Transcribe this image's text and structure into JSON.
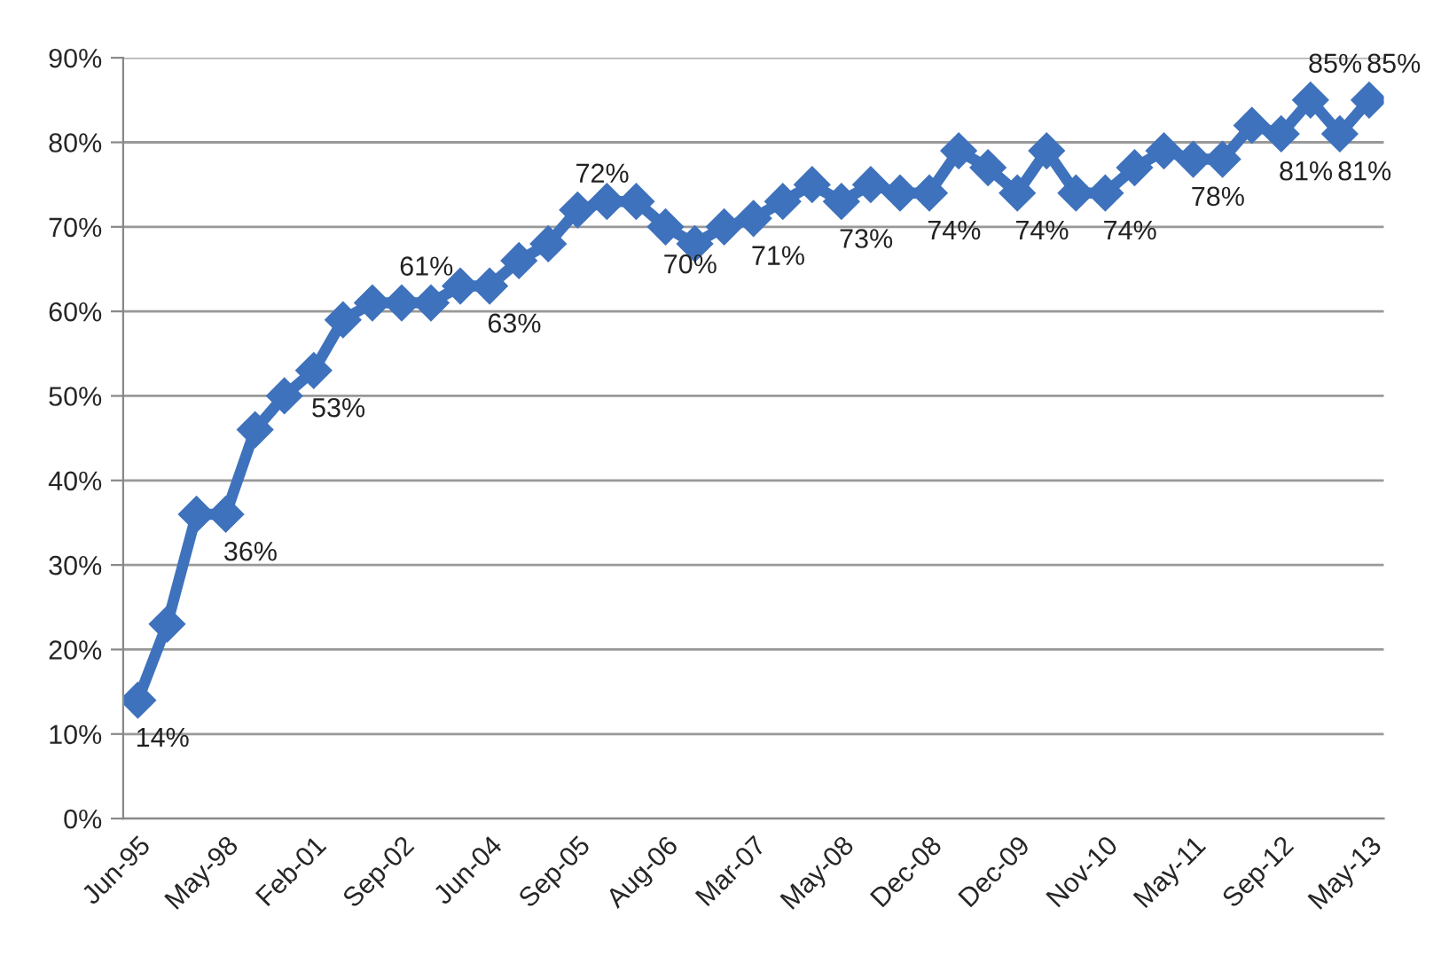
{
  "chart_data": {
    "type": "line",
    "categories": [
      "Jun-95",
      null,
      null,
      "May-98",
      null,
      null,
      "Feb-01",
      null,
      null,
      "Sep-02",
      null,
      null,
      "Jun-04",
      null,
      null,
      "Sep-05",
      null,
      null,
      "Aug-06",
      null,
      null,
      "Mar-07",
      null,
      null,
      "May-08",
      null,
      null,
      "Dec-08",
      null,
      null,
      "Dec-09",
      null,
      null,
      "Nov-10",
      null,
      null,
      "May-11",
      null,
      null,
      "Sep-12",
      null,
      null,
      "May-13"
    ],
    "series": [
      {
        "color": "#3f72bd",
        "values": [
          14,
          23,
          36,
          36,
          46,
          50,
          53,
          59,
          61,
          61,
          61,
          63,
          63,
          66,
          68,
          72,
          73,
          73,
          70,
          68,
          70,
          71,
          73,
          75,
          73,
          75,
          74,
          74,
          79,
          77,
          74,
          79,
          74,
          74,
          77,
          79,
          78,
          78,
          82,
          81,
          85,
          81,
          85
        ],
        "value_labels": [
          "14%",
          null,
          null,
          "36%",
          null,
          null,
          "53%",
          null,
          null,
          "61%",
          null,
          null,
          "63%",
          null,
          null,
          "72%",
          null,
          null,
          "70%",
          null,
          null,
          "71%",
          null,
          null,
          "73%",
          null,
          null,
          "74%",
          null,
          null,
          "74%",
          null,
          null,
          "74%",
          null,
          null,
          "78%",
          null,
          null,
          "81%",
          "85%",
          "81%",
          "85%"
        ]
      }
    ],
    "ylim": [
      0,
      90
    ],
    "yticks": [
      {
        "value": 0,
        "label": "0%"
      },
      {
        "value": 10,
        "label": "10%"
      },
      {
        "value": 20,
        "label": "20%"
      },
      {
        "value": 30,
        "label": "30%"
      },
      {
        "value": 40,
        "label": "40%"
      },
      {
        "value": 50,
        "label": "50%"
      },
      {
        "value": 60,
        "label": "60%"
      },
      {
        "value": 70,
        "label": "70%"
      },
      {
        "value": 80,
        "label": "80%"
      },
      {
        "value": 90,
        "label": "90%"
      }
    ],
    "grid": "y",
    "marker": "diamond",
    "line_style": "solid",
    "legend": false
  }
}
